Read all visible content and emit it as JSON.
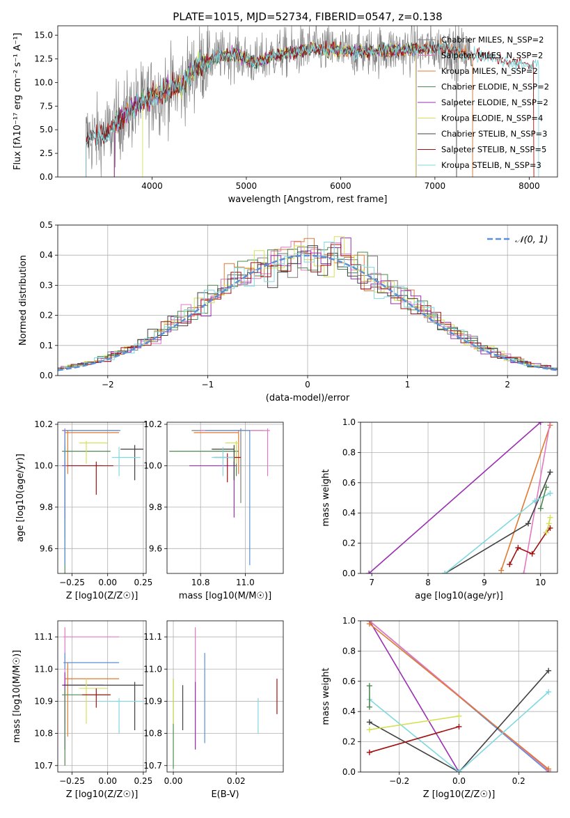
{
  "colors": {
    "chabrier_miles": "#7f7f7f",
    "salpeter_miles": "#e377c2",
    "kroupa_miles": "#e07a30",
    "chabrier_elodie": "#4e8a4e",
    "salpeter_elodie": "#9a2eb0",
    "kroupa_elodie": "#d4e157",
    "chabrier_stelib": "#404040",
    "salpeter_stelib": "#a01010",
    "kroupa_stelib": "#7fd8e0",
    "normal": "#5b8fd6"
  },
  "chart_data": [
    {
      "type": "line",
      "title": "PLATE=1015, MJD=52734, FIBERID=0547, z=0.138",
      "xlabel": "wavelength [Angstrom, rest frame]",
      "ylabel": "Flux [fλ10⁻¹⁷ erg cm⁻² s⁻¹ A⁻¹]",
      "xlim": [
        3000,
        8300
      ],
      "ylim": [
        0,
        16
      ],
      "xticks": [
        4000,
        5000,
        6000,
        7000,
        8000
      ],
      "yticks": [
        0.0,
        2.5,
        5.0,
        7.5,
        10.0,
        12.5,
        15.0
      ],
      "legend_position": "right",
      "legend": [
        "Chabrier MILES, N_SSP=2",
        "Salpeter MILES, N_SSP=2",
        "Kroupa MILES, N_SSP=2",
        "Chabrier ELODIE, N_SSP=2",
        "Salpeter ELODIE, N_SSP=2",
        "Kroupa ELODIE, N_SSP=4",
        "Chabrier STELIB, N_SSP=3",
        "Salpeter STELIB, N_SSP=5",
        "Kroupa STELIB, N_SSP=3"
      ],
      "spectrum_envelope": {
        "wavelength": [
          3300,
          3500,
          3700,
          3900,
          4100,
          4300,
          4500,
          4700,
          4900,
          5100,
          5300,
          5500,
          5700,
          5900,
          6100,
          6300,
          6500,
          6700,
          6900,
          7100,
          7300,
          7500,
          7700,
          7900,
          8100
        ],
        "flux": [
          4.2,
          4.3,
          6.5,
          8.0,
          9.0,
          9.6,
          11.8,
          12.8,
          13.0,
          12.0,
          13.0,
          13.2,
          13.6,
          13.4,
          13.3,
          13.3,
          13.4,
          13.5,
          13.6,
          13.6,
          13.2,
          12.8,
          12.4,
          12.0,
          11.8
        ]
      }
    },
    {
      "type": "bar",
      "xlabel": "(data-model)/error",
      "ylabel": "Normed distribution",
      "xlim": [
        -2.5,
        2.5
      ],
      "ylim": [
        0,
        0.5
      ],
      "xticks": [
        -2,
        -1,
        0,
        1,
        2
      ],
      "yticks": [
        0.0,
        0.1,
        0.2,
        0.3,
        0.4,
        0.5
      ],
      "grid": true,
      "legend": [
        "𝒩(0, 1)"
      ],
      "legend_position": "top-right",
      "histogram_bin_width": 0.1,
      "series_shape": "step histograms, one per model, approximately following the standard normal density"
    },
    {
      "type": "scatter",
      "xlabel": "Z [log10(Z/Z☉)]",
      "ylabel": "age  [log10(age/yr)]",
      "xlim": [
        -0.35,
        0.27
      ],
      "ylim": [
        9.48,
        10.21
      ],
      "xticks": [
        "−0.25",
        "0.00",
        "0.25"
      ],
      "yticks": [
        "9.6",
        "9.8",
        "10.0",
        "10.2"
      ],
      "points": [
        {
          "model": "chabrier_miles",
          "x": -0.3,
          "y": 10.17,
          "xerr": [
            0.02,
            0.38
          ],
          "yerr": [
            0.52,
            0.01
          ]
        },
        {
          "model": "salpeter_miles",
          "x": -0.3,
          "y": 10.17,
          "xerr": [
            0.01,
            0.38
          ],
          "yerr": [
            0.15,
            0.01
          ]
        },
        {
          "model": "kroupa_miles",
          "x": -0.28,
          "y": 10.16,
          "xerr": [
            0.02,
            0.36
          ],
          "yerr": [
            0.2,
            0.01
          ]
        },
        {
          "model": "chabrier_elodie",
          "x": -0.3,
          "y": 10.07,
          "xerr": [
            0.02,
            0.32
          ],
          "yerr": [
            0.6,
            0.03
          ]
        },
        {
          "model": "salpeter_elodie",
          "x": -0.3,
          "y": 10.0,
          "xerr": [
            0.02,
            0.27
          ],
          "yerr": [
            0.25,
            0.02
          ]
        },
        {
          "model": "kroupa_elodie",
          "x": -0.15,
          "y": 10.11,
          "xerr": [
            0.05,
            0.15
          ],
          "yerr": [
            0.1,
            0.01
          ]
        },
        {
          "model": "chabrier_stelib",
          "x": 0.19,
          "y": 10.08,
          "xerr": [
            0.1,
            0.06
          ],
          "yerr": [
            0.15,
            0.02
          ]
        },
        {
          "model": "salpeter_stelib",
          "x": -0.08,
          "y": 10.0,
          "xerr": [
            0.2,
            0.12
          ],
          "yerr": [
            0.14,
            0.02
          ]
        },
        {
          "model": "kroupa_stelib",
          "x": 0.08,
          "y": 10.04,
          "xerr": [
            0.05,
            0.15
          ],
          "yerr": [
            0.09,
            0.05
          ]
        },
        {
          "model": "normal",
          "x": -0.3,
          "y": 10.17,
          "xerr": [
            0.01,
            0.39
          ],
          "yerr": [
            0.65,
            0.0
          ]
        }
      ]
    },
    {
      "type": "scatter",
      "xlabel": "mass [log10(M/M☉)]",
      "xlim": [
        10.65,
        11.17
      ],
      "ylim": [
        9.48,
        10.21
      ],
      "xticks": [
        "10.8",
        "11.0"
      ],
      "yticks": [
        "9.6",
        "9.8",
        "10.0",
        "10.2"
      ],
      "points": [
        {
          "model": "chabrier_miles",
          "x": 10.98,
          "y": 10.17,
          "xerr": [
            0.22,
            0.1
          ],
          "yerr": [
            0.35,
            0.01
          ]
        },
        {
          "model": "salpeter_miles",
          "x": 11.1,
          "y": 10.17,
          "xerr": [
            0.3,
            0.01
          ],
          "yerr": [
            0.22,
            0.01
          ]
        },
        {
          "model": "kroupa_miles",
          "x": 10.97,
          "y": 10.16,
          "xerr": [
            0.2,
            0.0
          ],
          "yerr": [
            0.2,
            0.01
          ]
        },
        {
          "model": "chabrier_elodie",
          "x": 10.96,
          "y": 10.07,
          "xerr": [
            0.3,
            0.01
          ],
          "yerr": [
            0.12,
            0.03
          ]
        },
        {
          "model": "salpeter_elodie",
          "x": 10.95,
          "y": 10.0,
          "xerr": [
            0.2,
            0.01
          ],
          "yerr": [
            0.25,
            0.02
          ]
        },
        {
          "model": "kroupa_elodie",
          "x": 10.96,
          "y": 10.11,
          "xerr": [
            0.05,
            0.01
          ],
          "yerr": [
            0.1,
            0.01
          ]
        },
        {
          "model": "chabrier_stelib",
          "x": 10.95,
          "y": 10.08,
          "xerr": [
            0.1,
            0.0
          ],
          "yerr": [
            0.15,
            0.02
          ]
        },
        {
          "model": "salpeter_stelib",
          "x": 10.92,
          "y": 10.04,
          "xerr": [
            0.06,
            0.06
          ],
          "yerr": [
            0.12,
            0.02
          ]
        },
        {
          "model": "kroupa_stelib",
          "x": 10.9,
          "y": 10.04,
          "xerr": [
            0.05,
            0.05
          ],
          "yerr": [
            0.09,
            0.05
          ]
        },
        {
          "model": "normal",
          "x": 11.02,
          "y": 10.17,
          "xerr": [
            0.2,
            0.0
          ],
          "yerr": [
            0.65,
            0.0
          ]
        }
      ]
    },
    {
      "type": "line",
      "xlabel": "age  [log10(age/yr)]",
      "ylabel": "mass weight",
      "xlim": [
        6.8,
        10.3
      ],
      "ylim": [
        0,
        1
      ],
      "xticks": [
        "7",
        "8",
        "9",
        "10"
      ],
      "yticks": [
        "0.0",
        "0.2",
        "0.4",
        "0.6",
        "0.8",
        "1.0"
      ],
      "grid": true,
      "series": [
        {
          "model": "salpeter_elodie",
          "x": [
            6.95,
            10.0
          ],
          "y": [
            0.0,
            1.0
          ]
        },
        {
          "model": "kroupa_miles",
          "x": [
            9.3,
            10.17
          ],
          "y": [
            0.02,
            0.98
          ]
        },
        {
          "model": "salpeter_miles",
          "x": [
            9.7,
            10.17
          ],
          "y": [
            0.0,
            1.0
          ]
        },
        {
          "model": "chabrier_stelib",
          "x": [
            8.3,
            9.78,
            10.17
          ],
          "y": [
            0.0,
            0.33,
            0.67
          ]
        },
        {
          "model": "kroupa_stelib",
          "x": [
            8.3,
            9.9,
            10.17
          ],
          "y": [
            0.0,
            0.48,
            0.53
          ]
        },
        {
          "model": "salpeter_stelib",
          "x": [
            9.45,
            9.6,
            9.85,
            10.1,
            10.17
          ],
          "y": [
            0.06,
            0.17,
            0.13,
            0.27,
            0.3
          ]
        },
        {
          "model": "chabrier_elodie",
          "x": [
            10.0,
            10.1
          ],
          "y": [
            0.43,
            0.57
          ]
        },
        {
          "model": "kroupa_elodie",
          "x": [
            10.1,
            10.15,
            10.17
          ],
          "y": [
            0.27,
            0.33,
            0.37
          ]
        }
      ]
    },
    {
      "type": "scatter",
      "xlabel": "Z [log10(Z/Z☉)]",
      "ylabel": "mass [log10(M/M☉)]",
      "xlim": [
        -0.35,
        0.27
      ],
      "ylim": [
        10.68,
        11.15
      ],
      "xticks": [
        "−0.25",
        "0.00",
        "0.25"
      ],
      "yticks": [
        "10.7",
        "10.8",
        "10.9",
        "11.0",
        "11.1"
      ],
      "points": [
        {
          "model": "salpeter_miles",
          "x": -0.3,
          "y": 11.1,
          "xerr": [
            0.01,
            0.38
          ],
          "yerr": [
            0.27,
            0.03
          ]
        },
        {
          "model": "normal",
          "x": -0.3,
          "y": 11.02,
          "xerr": [
            0.01,
            0.38
          ],
          "yerr": [
            0.02,
            0.03
          ]
        },
        {
          "model": "kroupa_miles",
          "x": -0.28,
          "y": 10.97,
          "xerr": [
            0.02,
            0.36
          ],
          "yerr": [
            0.18,
            0.05
          ]
        },
        {
          "model": "salpeter_elodie",
          "x": -0.3,
          "y": 10.95,
          "xerr": [
            0.02,
            0.27
          ],
          "yerr": [
            0.2,
            0.04
          ]
        },
        {
          "model": "chabrier_stelib",
          "x": 0.19,
          "y": 10.95,
          "xerr": [
            0.5,
            0.06
          ],
          "yerr": [
            0.14,
            0.01
          ]
        },
        {
          "model": "kroupa_elodie",
          "x": -0.15,
          "y": 10.94,
          "xerr": [
            0.05,
            0.15
          ],
          "yerr": [
            0.11,
            0.03
          ]
        },
        {
          "model": "chabrier_elodie",
          "x": -0.3,
          "y": 10.92,
          "xerr": [
            0.02,
            0.32
          ],
          "yerr": [
            0.22,
            0.02
          ]
        },
        {
          "model": "salpeter_stelib",
          "x": -0.08,
          "y": 10.92,
          "xerr": [
            0.1,
            0.1
          ],
          "yerr": [
            0.04,
            0.02
          ]
        },
        {
          "model": "kroupa_stelib",
          "x": 0.08,
          "y": 10.9,
          "xerr": [
            0.15,
            0.17
          ],
          "yerr": [
            0.1,
            0.01
          ]
        }
      ]
    },
    {
      "type": "scatter",
      "xlabel": "E(B-V)",
      "xlim": [
        -0.002,
        0.035
      ],
      "ylim": [
        10.68,
        11.15
      ],
      "xticks": [
        "0.00",
        "0.02"
      ],
      "yticks": [
        "10.7",
        "10.8",
        "10.9",
        "11.0",
        "11.1"
      ],
      "points": [
        {
          "model": "chabrier_elodie",
          "x": 0.0,
          "y": 10.85,
          "yerr": [
            0.16,
            0.12
          ]
        },
        {
          "model": "kroupa_elodie",
          "x": 0.0,
          "y": 10.9,
          "yerr": [
            0.07,
            0.07
          ]
        },
        {
          "model": "chabrier_stelib",
          "x": 0.003,
          "y": 10.88,
          "yerr": [
            0.07,
            0.07
          ]
        },
        {
          "model": "salpeter_miles",
          "x": 0.007,
          "y": 10.99,
          "yerr": [
            0.24,
            0.14
          ]
        },
        {
          "model": "salpeter_elodie",
          "x": 0.007,
          "y": 10.87,
          "yerr": [
            0.12,
            0.09
          ]
        },
        {
          "model": "normal",
          "x": 0.01,
          "y": 10.97,
          "yerr": [
            0.2,
            0.08
          ]
        },
        {
          "model": "kroupa_stelib",
          "x": 0.027,
          "y": 10.87,
          "yerr": [
            0.07,
            0.04
          ]
        },
        {
          "model": "salpeter_stelib",
          "x": 0.033,
          "y": 10.91,
          "yerr": [
            0.05,
            0.06
          ]
        }
      ]
    },
    {
      "type": "line",
      "xlabel": "Z [log10(Z/Z☉)]",
      "ylabel": "mass weight",
      "xlim": [
        -0.33,
        0.33
      ],
      "ylim": [
        0,
        1
      ],
      "xticks": [
        "−0.2",
        "0.0",
        "0.2"
      ],
      "yticks": [
        "0.0",
        "0.2",
        "0.4",
        "0.6",
        "0.8",
        "1.0"
      ],
      "grid": true,
      "series": [
        {
          "model": "salpeter_elodie",
          "x": [
            -0.3,
            0.0
          ],
          "y": [
            1.0,
            0.0
          ]
        },
        {
          "model": "normal",
          "x": [
            -0.3,
            0.3
          ],
          "y": [
            1.0,
            0.0
          ]
        },
        {
          "model": "salpeter_miles",
          "x": [
            -0.3,
            0.3
          ],
          "y": [
            1.0,
            0.01
          ]
        },
        {
          "model": "kroupa_miles",
          "x": [
            -0.3,
            0.3
          ],
          "y": [
            0.98,
            0.02
          ]
        },
        {
          "model": "chabrier_stelib",
          "x": [
            -0.3,
            0.0,
            0.3
          ],
          "y": [
            0.33,
            0.0,
            0.67
          ]
        },
        {
          "model": "kroupa_stelib",
          "x": [
            -0.3,
            0.0,
            0.3
          ],
          "y": [
            0.48,
            0.0,
            0.53
          ]
        },
        {
          "model": "kroupa_elodie",
          "x": [
            -0.3,
            0.0
          ],
          "y": [
            0.28,
            0.37
          ]
        },
        {
          "model": "salpeter_stelib",
          "x": [
            -0.3,
            0.0
          ],
          "y": [
            0.13,
            0.3
          ]
        },
        {
          "model": "chabrier_elodie",
          "x": [
            -0.3,
            -0.3
          ],
          "y": [
            0.43,
            0.57
          ]
        }
      ]
    }
  ]
}
